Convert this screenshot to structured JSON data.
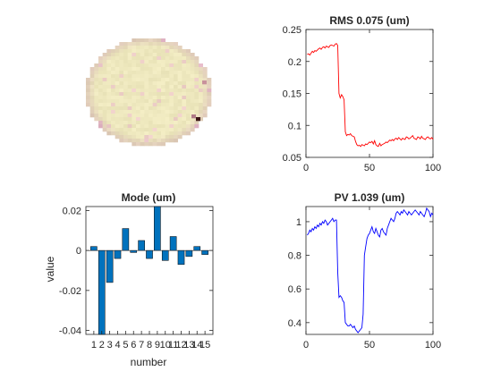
{
  "chart_data": [
    {
      "id": "surface",
      "type": "heatmap",
      "title": "",
      "description_colormap": "pink",
      "shape": "circular aperture",
      "grid_cells": 30,
      "notes": "pale yellow/cream disk with darker pink edge pixels; a dark speck near lower-right edge"
    },
    {
      "id": "rms",
      "type": "line",
      "title": "RMS 0.075 (um)",
      "xlabel": "",
      "ylabel": "",
      "xlim": [
        0,
        100
      ],
      "ylim": [
        0.05,
        0.25
      ],
      "xticks": [
        "0",
        "50",
        "100"
      ],
      "yticks": [
        "0.05",
        "0.1",
        "0.15",
        "0.2",
        "0.25"
      ],
      "color": "#ff0000",
      "series": [
        {
          "x": [
            1,
            2,
            3,
            4,
            5,
            6,
            7,
            8,
            9,
            10,
            11,
            12,
            13,
            14,
            15,
            16,
            17,
            18,
            19,
            20,
            21,
            22,
            23,
            24,
            25,
            26,
            27,
            28,
            29,
            30,
            31,
            32,
            33,
            34,
            35,
            36,
            37,
            38,
            39,
            40,
            41,
            42,
            43,
            44,
            45,
            46,
            47,
            48,
            49,
            50,
            51,
            52,
            53,
            54,
            55,
            56,
            57,
            58,
            59,
            60,
            61,
            62,
            63,
            64,
            65,
            66,
            67,
            68,
            69,
            70,
            71,
            72,
            73,
            74,
            75,
            76,
            77,
            78,
            79,
            80,
            81,
            82,
            83,
            84,
            85,
            86,
            87,
            88,
            89,
            90,
            91,
            92,
            93,
            94,
            95,
            96,
            97,
            98,
            99,
            100
          ],
          "values": [
            0.211,
            0.212,
            0.21,
            0.213,
            0.216,
            0.214,
            0.217,
            0.216,
            0.218,
            0.22,
            0.221,
            0.219,
            0.222,
            0.223,
            0.221,
            0.224,
            0.223,
            0.222,
            0.225,
            0.226,
            0.225,
            0.224,
            0.227,
            0.228,
            0.225,
            0.15,
            0.143,
            0.148,
            0.145,
            0.14,
            0.09,
            0.084,
            0.086,
            0.085,
            0.087,
            0.084,
            0.083,
            0.082,
            0.075,
            0.07,
            0.068,
            0.069,
            0.067,
            0.07,
            0.069,
            0.068,
            0.071,
            0.07,
            0.072,
            0.074,
            0.073,
            0.075,
            0.071,
            0.076,
            0.07,
            0.068,
            0.067,
            0.072,
            0.068,
            0.07,
            0.071,
            0.072,
            0.074,
            0.073,
            0.075,
            0.077,
            0.076,
            0.078,
            0.076,
            0.079,
            0.08,
            0.078,
            0.081,
            0.079,
            0.077,
            0.08,
            0.079,
            0.078,
            0.082,
            0.081,
            0.079,
            0.08,
            0.082,
            0.084,
            0.08,
            0.079,
            0.078,
            0.082,
            0.081,
            0.079,
            0.083,
            0.08,
            0.079,
            0.078,
            0.081,
            0.082,
            0.08,
            0.079,
            0.081,
            0.078
          ]
        }
      ]
    },
    {
      "id": "mode",
      "type": "bar",
      "title": "Mode (um)",
      "xlabel": "number",
      "ylabel": "value",
      "ylim": [
        -0.042,
        0.022
      ],
      "yticks": [
        "0.02",
        "0",
        "-0.02",
        "-0.04"
      ],
      "categories": [
        "1",
        "2",
        "3",
        "4",
        "5",
        "6",
        "7",
        "8",
        "9",
        "10",
        "11",
        "12",
        "13",
        "14",
        "15"
      ],
      "values": [
        0.002,
        -0.045,
        -0.016,
        -0.004,
        0.011,
        -0.001,
        0.005,
        -0.004,
        0.023,
        -0.005,
        0.007,
        -0.007,
        -0.003,
        0.002,
        -0.002
      ],
      "color": "#0072bd"
    },
    {
      "id": "pv",
      "type": "line",
      "title": "PV 1.039 (um)",
      "xlabel": "",
      "ylabel": "",
      "xlim": [
        0,
        100
      ],
      "ylim": [
        0.33,
        1.09
      ],
      "xticks": [
        "0",
        "50",
        "100"
      ],
      "yticks": [
        "0.4",
        "0.6",
        "0.8",
        "1"
      ],
      "color": "#0000ff",
      "series": [
        {
          "x": [
            1,
            2,
            3,
            4,
            5,
            6,
            7,
            8,
            9,
            10,
            11,
            12,
            13,
            14,
            15,
            16,
            17,
            18,
            19,
            20,
            21,
            22,
            23,
            24,
            25,
            26,
            27,
            28,
            29,
            30,
            31,
            32,
            33,
            34,
            35,
            36,
            37,
            38,
            39,
            40,
            41,
            42,
            43,
            44,
            45,
            46,
            47,
            48,
            49,
            50,
            51,
            52,
            53,
            54,
            55,
            56,
            57,
            58,
            59,
            60,
            61,
            62,
            63,
            64,
            65,
            66,
            67,
            68,
            69,
            70,
            71,
            72,
            73,
            74,
            75,
            76,
            77,
            78,
            79,
            80,
            81,
            82,
            83,
            84,
            85,
            86,
            87,
            88,
            89,
            90,
            91,
            92,
            93,
            94,
            95,
            96,
            97,
            98,
            99,
            100
          ],
          "values": [
            0.92,
            0.93,
            0.95,
            0.94,
            0.96,
            0.95,
            0.97,
            0.96,
            0.98,
            0.97,
            0.99,
            0.98,
            1.0,
            0.99,
            1.01,
            1.0,
            0.98,
            0.99,
            1.0,
            1.01,
            1.02,
            1.0,
            1.01,
            1.01,
            0.7,
            0.55,
            0.56,
            0.55,
            0.53,
            0.52,
            0.4,
            0.39,
            0.38,
            0.38,
            0.39,
            0.38,
            0.37,
            0.38,
            0.36,
            0.35,
            0.34,
            0.35,
            0.36,
            0.37,
            0.45,
            0.8,
            0.85,
            0.9,
            0.92,
            0.93,
            0.95,
            0.97,
            0.94,
            0.93,
            0.96,
            0.94,
            0.92,
            0.91,
            0.95,
            0.96,
            0.94,
            0.93,
            0.92,
            0.96,
            0.98,
            1.0,
            1.02,
            1.01,
            1.0,
            1.02,
            1.05,
            1.06,
            1.05,
            1.04,
            1.06,
            1.05,
            1.07,
            1.06,
            1.05,
            1.04,
            1.06,
            1.05,
            1.04,
            1.05,
            1.06,
            1.07,
            1.06,
            1.05,
            1.04,
            1.06,
            1.05,
            1.04,
            1.03,
            1.05,
            1.08,
            1.07,
            1.06,
            1.03,
            1.05,
            1.04
          ]
        }
      ]
    }
  ]
}
